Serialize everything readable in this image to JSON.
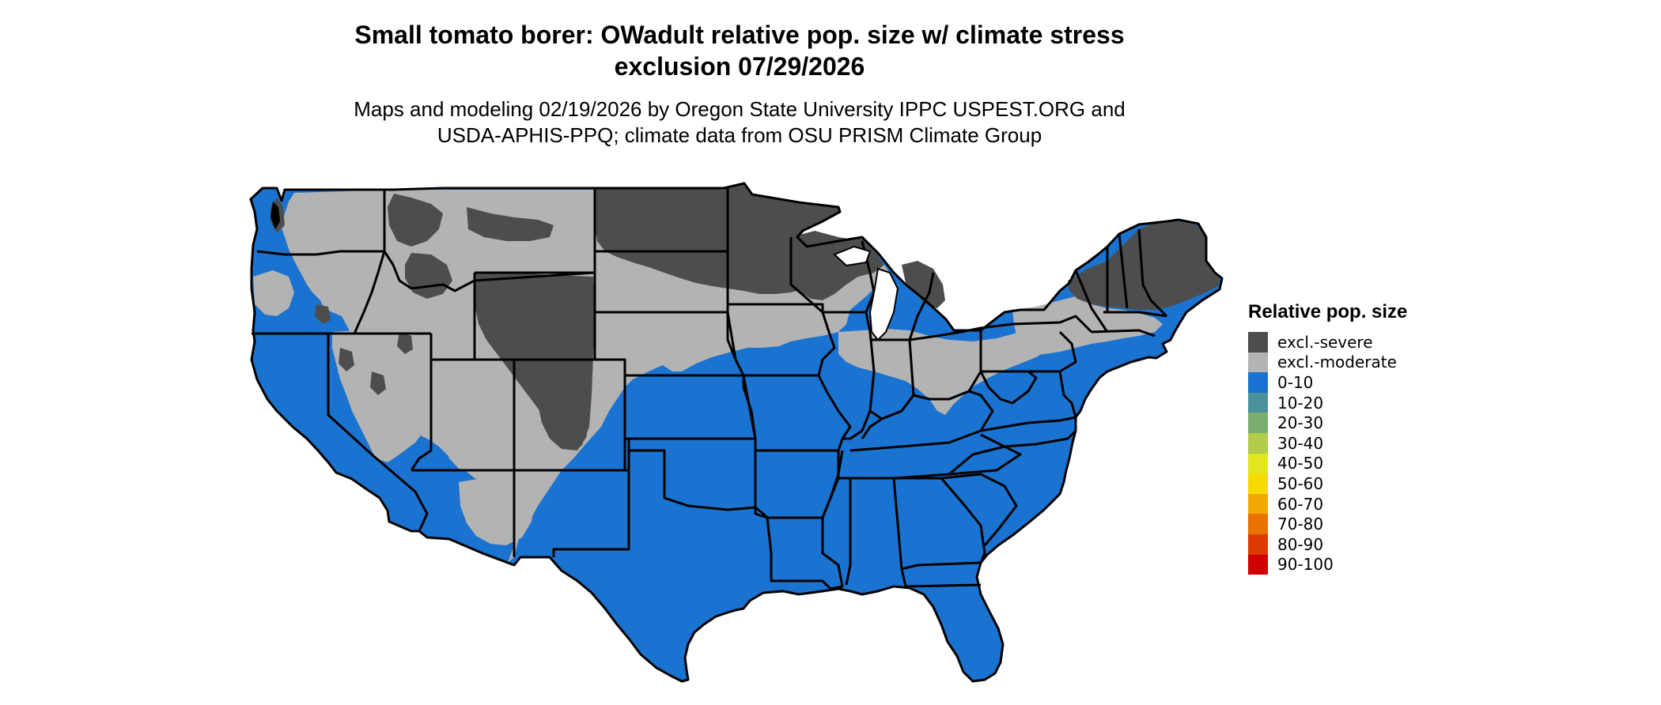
{
  "title": {
    "line1": "Small tomato borer: OWadult relative pop. size w/ climate stress",
    "line2": "exclusion 07/29/2026"
  },
  "subtitle": {
    "line1": "Maps and modeling 02/19/2026 by Oregon State University IPPC USPEST.ORG and",
    "line2": "USDA-APHIS-PPQ; climate data from OSU PRISM Climate Group"
  },
  "colors": {
    "excl_severe": "#4d4d4d",
    "excl_moderate": "#b3b3b3",
    "range_0_10": "#1a73d0",
    "state_border": "#000000",
    "background": "#ffffff"
  },
  "legend": {
    "title": "Relative pop. size",
    "items": [
      {
        "label": "excl.-severe",
        "color": "#4d4d4d"
      },
      {
        "label": "excl.-moderate",
        "color": "#b3b3b3"
      },
      {
        "label": "0-10",
        "color": "#1a73d0"
      },
      {
        "label": "10-20",
        "color": "#4a929b"
      },
      {
        "label": "20-30",
        "color": "#7aae6f"
      },
      {
        "label": "30-40",
        "color": "#b0cc48"
      },
      {
        "label": "40-50",
        "color": "#e0e61f"
      },
      {
        "label": "50-60",
        "color": "#f7db00"
      },
      {
        "label": "60-70",
        "color": "#f0a800"
      },
      {
        "label": "70-80",
        "color": "#e87300"
      },
      {
        "label": "80-90",
        "color": "#dd3a00"
      },
      {
        "label": "90-100",
        "color": "#d10000"
      }
    ]
  },
  "map": {
    "region": "Contiguous United States",
    "zones": [
      {
        "name": "excl-severe",
        "color_key": "excl_severe"
      },
      {
        "name": "excl-moderate",
        "color_key": "excl_moderate"
      },
      {
        "name": "range-0-10",
        "color_key": "range_0_10"
      }
    ]
  }
}
